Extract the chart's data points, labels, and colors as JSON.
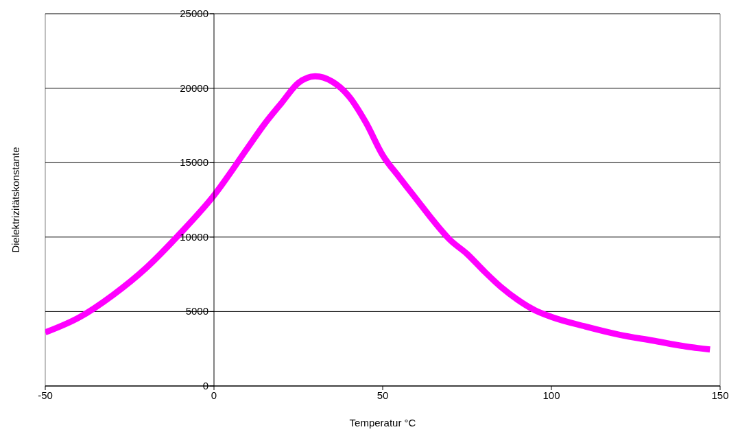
{
  "chart_data": {
    "type": "line",
    "xlabel": "Temperatur °C",
    "ylabel": "Dielektrizitätskonstante",
    "x": [
      -50,
      -40,
      -30,
      -20,
      -10,
      0,
      10,
      15,
      20,
      25,
      30,
      35,
      40,
      45,
      50,
      55,
      60,
      65,
      70,
      75,
      80,
      85,
      90,
      95,
      100,
      110,
      120,
      130,
      140,
      147
    ],
    "series": [
      {
        "color": "#ff00ff",
        "values": [
          3600,
          4600,
          6100,
          7950,
          10250,
          12800,
          16000,
          17600,
          19000,
          20350,
          20800,
          20450,
          19450,
          17700,
          15500,
          14000,
          12550,
          11100,
          9800,
          8870,
          7720,
          6660,
          5790,
          5100,
          4640,
          4000,
          3450,
          3050,
          2650,
          2450
        ]
      }
    ],
    "xlim": [
      -50,
      150
    ],
    "xticks": [
      -50,
      0,
      50,
      100,
      150
    ],
    "ylim": [
      0,
      25000
    ],
    "yticks": [
      0,
      5000,
      10000,
      15000,
      20000,
      25000
    ],
    "grid": "y",
    "marker": "none",
    "line_style": "solid"
  }
}
